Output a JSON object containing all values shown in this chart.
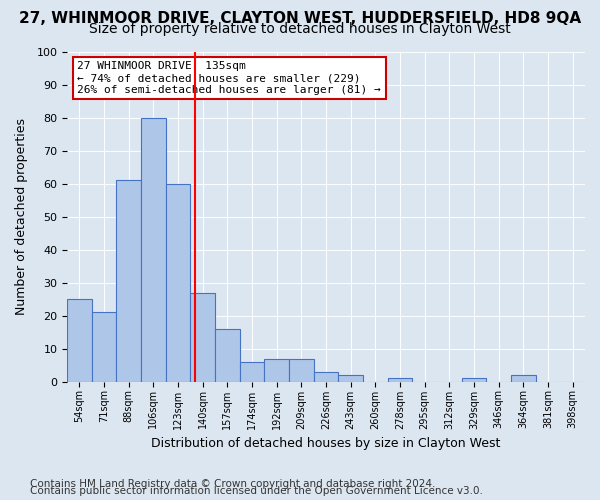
{
  "title1": "27, WHINMOOR DRIVE, CLAYTON WEST, HUDDERSFIELD, HD8 9QA",
  "title2": "Size of property relative to detached houses in Clayton West",
  "xlabel": "Distribution of detached houses by size in Clayton West",
  "ylabel": "Number of detached properties",
  "bin_labels": [
    "54sqm",
    "71sqm",
    "88sqm",
    "106sqm",
    "123sqm",
    "140sqm",
    "157sqm",
    "174sqm",
    "192sqm",
    "209sqm",
    "226sqm",
    "243sqm",
    "260sqm",
    "278sqm",
    "295sqm",
    "312sqm",
    "329sqm",
    "346sqm",
    "364sqm",
    "381sqm",
    "398sqm"
  ],
  "bar_heights": [
    25,
    21,
    61,
    80,
    60,
    27,
    16,
    6,
    7,
    7,
    3,
    2,
    0,
    1,
    0,
    0,
    1,
    0,
    2,
    0,
    0
  ],
  "bar_color": "#aec6e8",
  "bar_edge_color": "#4472c4",
  "red_line_x": 4.67,
  "annotation_text": "27 WHINMOOR DRIVE: 135sqm\n← 74% of detached houses are smaller (229)\n26% of semi-detached houses are larger (81) →",
  "annotation_box_color": "#ffffff",
  "annotation_box_edge": "#cc0000",
  "ylim": [
    0,
    100
  ],
  "yticks": [
    0,
    10,
    20,
    30,
    40,
    50,
    60,
    70,
    80,
    90,
    100
  ],
  "footer1": "Contains HM Land Registry data © Crown copyright and database right 2024.",
  "footer2": "Contains public sector information licensed under the Open Government Licence v3.0.",
  "background_color": "#dce6f1",
  "plot_bg_color": "#dce6f1",
  "title1_fontsize": 11,
  "title2_fontsize": 10,
  "annotation_fontsize": 8,
  "xlabel_fontsize": 9,
  "ylabel_fontsize": 9,
  "footer_fontsize": 7.5
}
